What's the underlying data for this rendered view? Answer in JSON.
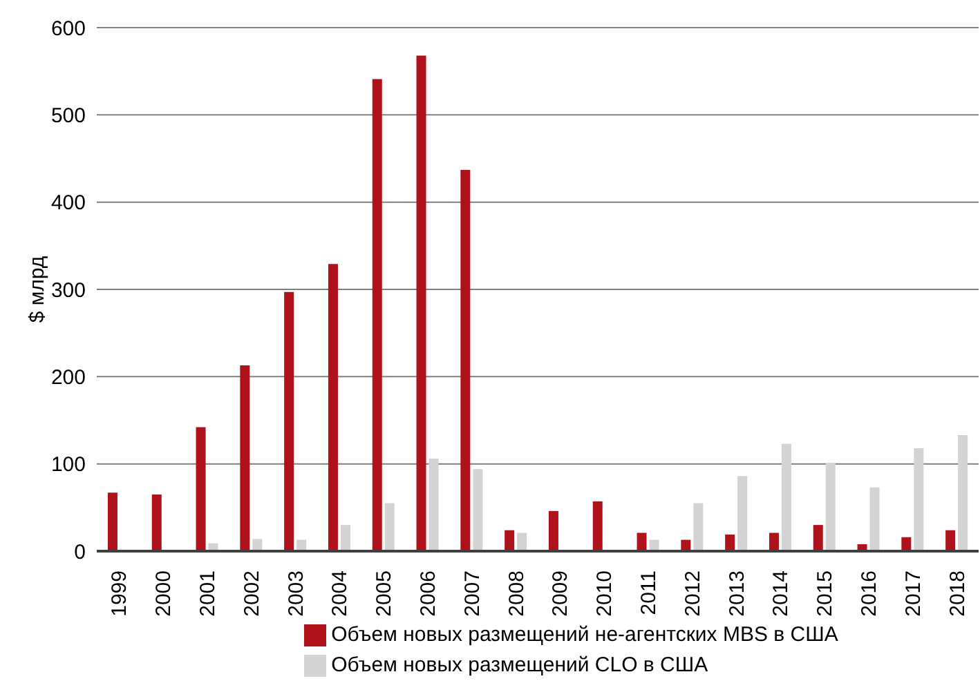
{
  "chart_data": {
    "type": "bar",
    "ylabel": "$ млрд",
    "categories": [
      "1999",
      "2000",
      "2001",
      "2002",
      "2003",
      "2004",
      "2005",
      "2006",
      "2007",
      "2008",
      "2009",
      "2010",
      "2011",
      "2012",
      "2013",
      "2014",
      "2015",
      "2016",
      "2017",
      "2018"
    ],
    "series": [
      {
        "name": "Объем новых размещений не-агентских MBS в США",
        "color": "#b0121b",
        "values": [
          67,
          65,
          142,
          213,
          297,
          329,
          541,
          568,
          437,
          24,
          46,
          57,
          21,
          13,
          19,
          21,
          30,
          8,
          16,
          24
        ]
      },
      {
        "name": "Объем новых размещений CLO в США",
        "color": "#d3d3d3",
        "values": [
          0,
          0,
          9,
          14,
          13,
          30,
          55,
          106,
          94,
          21,
          null,
          null,
          13,
          55,
          86,
          123,
          101,
          73,
          118,
          133
        ]
      }
    ],
    "ylim": [
      0,
      600
    ],
    "yticks": [
      0,
      100,
      200,
      300,
      400,
      500,
      600
    ],
    "grid": "y",
    "legend": "bottom"
  }
}
